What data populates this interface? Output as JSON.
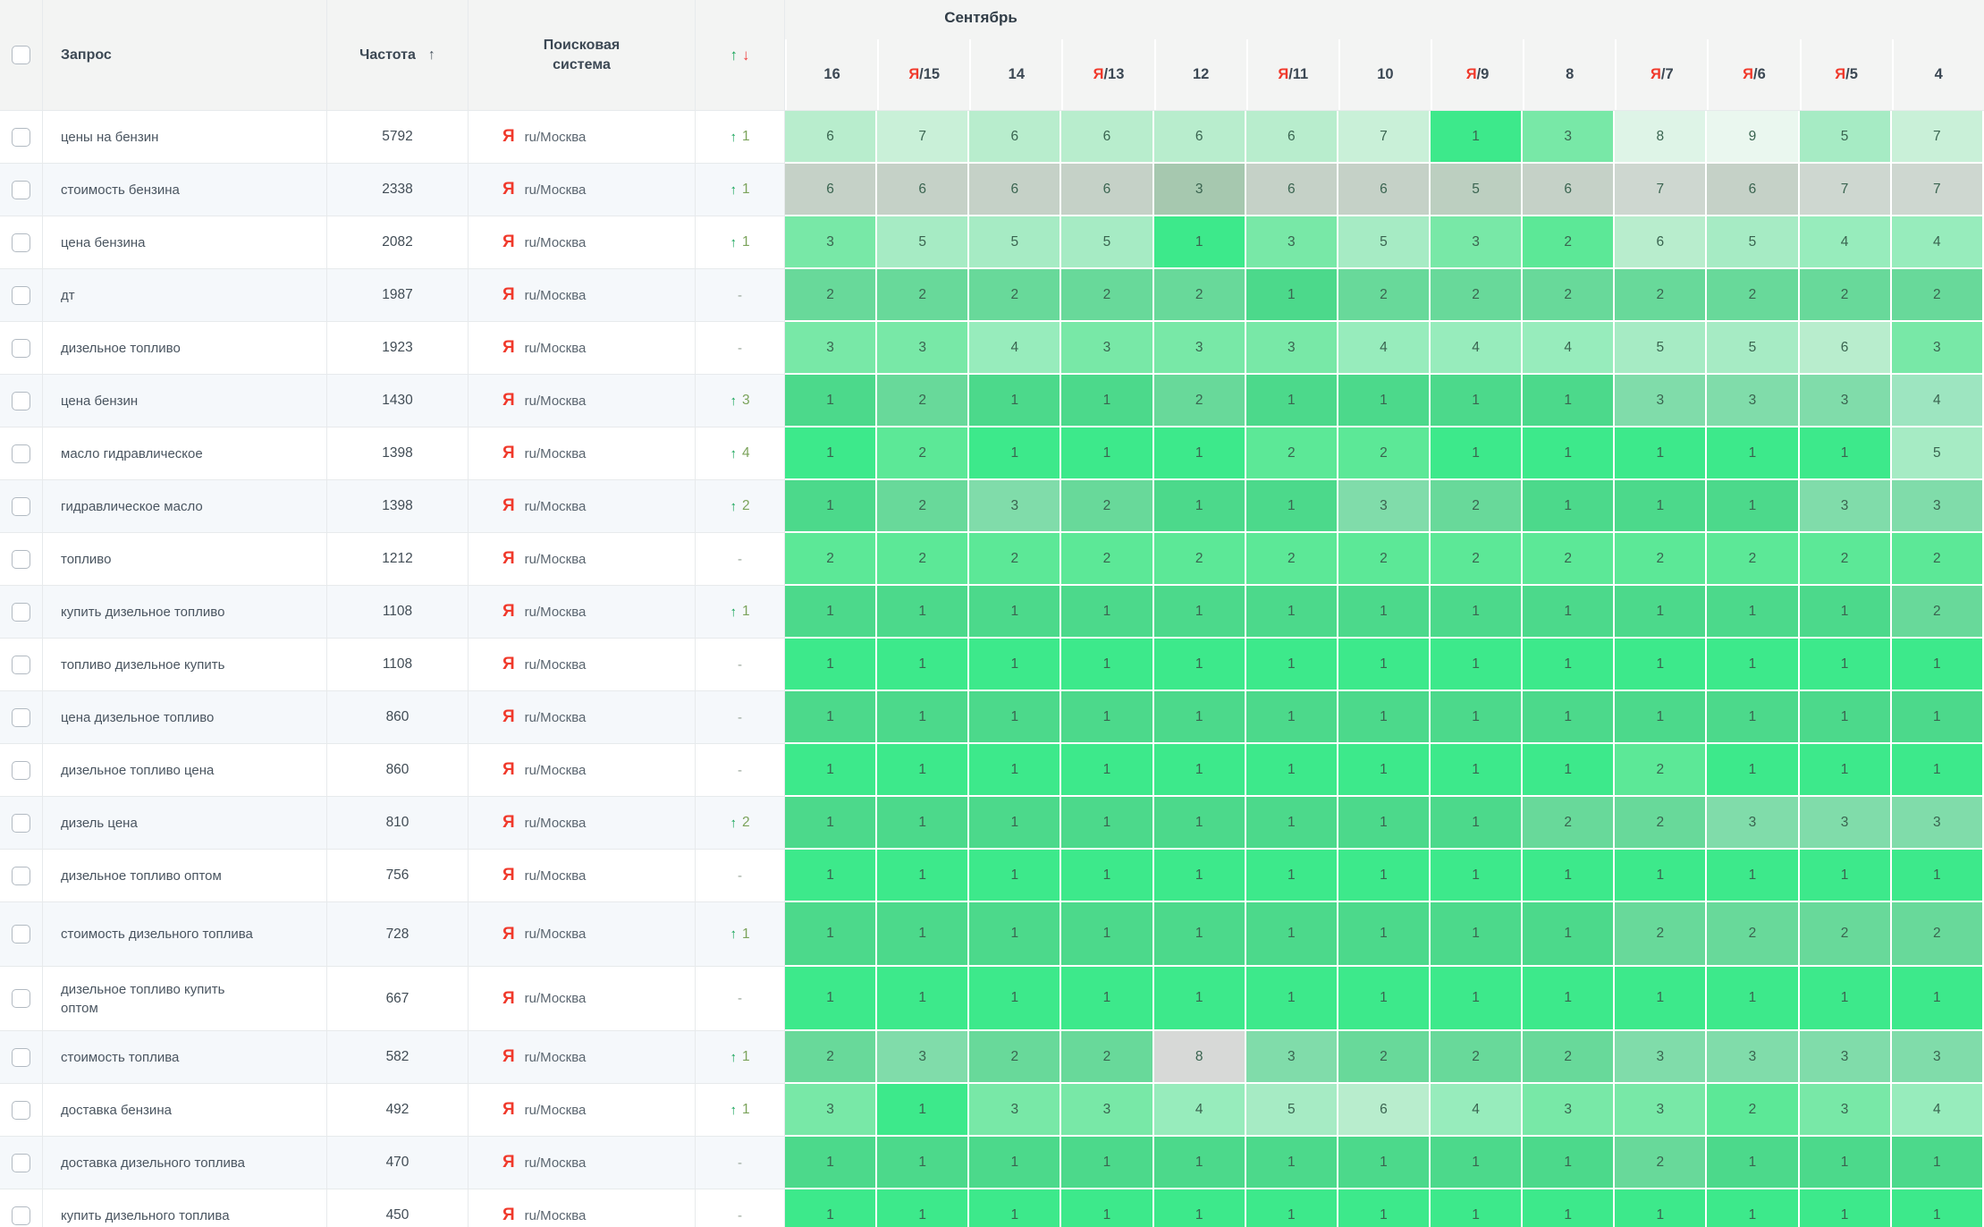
{
  "header": {
    "query_label": "Запрос",
    "frequency_label": "Частота",
    "engine_label_line1": "Поисковая",
    "engine_label_line2": "система",
    "month_label": "Сентябрь",
    "sort_asc_icon": "↑",
    "change_up_icon": "↑",
    "change_down_icon": "↓",
    "dates": [
      {
        "ya": false,
        "label": "16"
      },
      {
        "ya": true,
        "label": "15"
      },
      {
        "ya": false,
        "label": "14"
      },
      {
        "ya": true,
        "label": "13"
      },
      {
        "ya": false,
        "label": "12"
      },
      {
        "ya": true,
        "label": "11"
      },
      {
        "ya": false,
        "label": "10"
      },
      {
        "ya": true,
        "label": "9"
      },
      {
        "ya": false,
        "label": "8"
      },
      {
        "ya": true,
        "label": "7"
      },
      {
        "ya": true,
        "label": "6"
      },
      {
        "ya": true,
        "label": "5"
      },
      {
        "ya": false,
        "label": "4"
      }
    ]
  },
  "engine": {
    "icon_letter": "Я",
    "label": "ru/Москва"
  },
  "change_glyphs": {
    "up": "↑",
    "dash": "-"
  },
  "colors": {
    "yandex_red": "#f0392b",
    "header_text": "#3c4854",
    "header_bg": "#f3f4f3",
    "query_text": "#4a5560",
    "cell_text": "#3a6450",
    "up_green": "#13a356",
    "down_red": "#ef4040",
    "change_value": "#7ba35b",
    "dash": "#98a59a",
    "alt_row_bg": "#f5f8fb",
    "grid_line": "#e7eaec",
    "neutral_cell": "#d7d9d7"
  },
  "palettes": {
    "normal": {
      "1": "#3de98b",
      "2": "#5ce897",
      "3": "#78e8a7",
      "4": "#97ecbc",
      "5": "#a6ebc4",
      "6": "#b8edcd",
      "7": "#c9f0d8",
      "8": "#def4e7",
      "9": "#eaf7ef"
    },
    "muted": {
      "1": "#4cd98b",
      "2": "#68d99a",
      "3": "#80dcaa",
      "4": "#9de5c0",
      "5": "#aae6c5",
      "6": "#bbead0",
      "7": "#cceedb",
      "8": "#dff2e8",
      "9": "#ebf5f0"
    },
    "gray": {
      "1": "#98c4a4",
      "2": "#9fc6a9",
      "3": "#a6c8af",
      "4": "#b1cbb8",
      "5": "#bccfc0",
      "6": "#c5d1c7",
      "7": "#ced7d0",
      "8": "#d7dcd8",
      "9": "#e0e4e1"
    }
  },
  "rows": [
    {
      "query": "цены на бензин",
      "frequency": "5792",
      "change": {
        "dir": "up",
        "value": "1"
      },
      "cells": [
        6,
        7,
        6,
        6,
        6,
        6,
        7,
        1,
        3,
        8,
        9,
        5,
        7
      ]
    },
    {
      "query": "стоимость бензина",
      "frequency": "2338",
      "change": {
        "dir": "up",
        "value": "1"
      },
      "gray": true,
      "cells": [
        6,
        6,
        6,
        6,
        3,
        6,
        6,
        5,
        6,
        7,
        6,
        7,
        7
      ]
    },
    {
      "query": "цена бензина",
      "frequency": "2082",
      "change": {
        "dir": "up",
        "value": "1"
      },
      "cells": [
        3,
        5,
        5,
        5,
        1,
        3,
        5,
        3,
        2,
        6,
        5,
        4,
        4
      ]
    },
    {
      "query": "дт",
      "frequency": "1987",
      "change": {
        "dir": "dash"
      },
      "cells": [
        2,
        2,
        2,
        2,
        2,
        1,
        2,
        2,
        2,
        2,
        2,
        2,
        2
      ]
    },
    {
      "query": "дизельное топливо",
      "frequency": "1923",
      "change": {
        "dir": "dash"
      },
      "cells": [
        3,
        3,
        4,
        3,
        3,
        3,
        4,
        4,
        4,
        5,
        5,
        6,
        3
      ]
    },
    {
      "query": "цена бензин",
      "frequency": "1430",
      "change": {
        "dir": "up",
        "value": "3"
      },
      "cells": [
        1,
        2,
        1,
        1,
        2,
        1,
        1,
        1,
        1,
        3,
        3,
        3,
        4
      ]
    },
    {
      "query": "масло гидравлическое",
      "frequency": "1398",
      "change": {
        "dir": "up",
        "value": "4"
      },
      "cells": [
        1,
        2,
        1,
        1,
        1,
        2,
        2,
        1,
        1,
        1,
        1,
        1,
        5
      ]
    },
    {
      "query": "гидравлическое масло",
      "frequency": "1398",
      "change": {
        "dir": "up",
        "value": "2"
      },
      "cells": [
        1,
        2,
        3,
        2,
        1,
        1,
        3,
        2,
        1,
        1,
        1,
        3,
        3
      ]
    },
    {
      "query": "топливо",
      "frequency": "1212",
      "change": {
        "dir": "dash"
      },
      "cells": [
        2,
        2,
        2,
        2,
        2,
        2,
        2,
        2,
        2,
        2,
        2,
        2,
        2
      ]
    },
    {
      "query": "купить дизельное топливо",
      "frequency": "1108",
      "change": {
        "dir": "up",
        "value": "1"
      },
      "cells": [
        1,
        1,
        1,
        1,
        1,
        1,
        1,
        1,
        1,
        1,
        1,
        1,
        2
      ]
    },
    {
      "query": "топливо дизельное купить",
      "frequency": "1108",
      "change": {
        "dir": "dash"
      },
      "cells": [
        1,
        1,
        1,
        1,
        1,
        1,
        1,
        1,
        1,
        1,
        1,
        1,
        1
      ]
    },
    {
      "query": "цена дизельное топливо",
      "frequency": "860",
      "change": {
        "dir": "dash"
      },
      "cells": [
        1,
        1,
        1,
        1,
        1,
        1,
        1,
        1,
        1,
        1,
        1,
        1,
        1
      ]
    },
    {
      "query": "дизельное топливо цена",
      "frequency": "860",
      "change": {
        "dir": "dash"
      },
      "cells": [
        1,
        1,
        1,
        1,
        1,
        1,
        1,
        1,
        1,
        2,
        1,
        1,
        1
      ]
    },
    {
      "query": "дизель цена",
      "frequency": "810",
      "change": {
        "dir": "up",
        "value": "2"
      },
      "cells": [
        1,
        1,
        1,
        1,
        1,
        1,
        1,
        1,
        2,
        2,
        3,
        3,
        3
      ]
    },
    {
      "query": "дизельное топливо оптом",
      "frequency": "756",
      "change": {
        "dir": "dash"
      },
      "cells": [
        1,
        1,
        1,
        1,
        1,
        1,
        1,
        1,
        1,
        1,
        1,
        1,
        1
      ]
    },
    {
      "query": "стоимость дизельного топлива",
      "frequency": "728",
      "change": {
        "dir": "up",
        "value": "1"
      },
      "cells": [
        1,
        1,
        1,
        1,
        1,
        1,
        1,
        1,
        1,
        2,
        2,
        2,
        2
      ]
    },
    {
      "query": "дизельное топливо купить оптом",
      "frequency": "667",
      "change": {
        "dir": "dash"
      },
      "cells": [
        1,
        1,
        1,
        1,
        1,
        1,
        1,
        1,
        1,
        1,
        1,
        1,
        1
      ]
    },
    {
      "query": "стоимость топлива",
      "frequency": "582",
      "change": {
        "dir": "up",
        "value": "1"
      },
      "cells": [
        2,
        3,
        2,
        2,
        8,
        3,
        2,
        2,
        2,
        3,
        3,
        3,
        3
      ],
      "overrides": {
        "4": "neutral"
      }
    },
    {
      "query": "доставка бензина",
      "frequency": "492",
      "change": {
        "dir": "up",
        "value": "1"
      },
      "cells": [
        3,
        1,
        3,
        3,
        4,
        5,
        6,
        4,
        3,
        3,
        2,
        3,
        4
      ]
    },
    {
      "query": "доставка дизельного топлива",
      "frequency": "470",
      "change": {
        "dir": "dash"
      },
      "cells": [
        1,
        1,
        1,
        1,
        1,
        1,
        1,
        1,
        1,
        2,
        1,
        1,
        1
      ]
    },
    {
      "query": "купить дизельного топлива",
      "frequency": "450",
      "change": {
        "dir": "dash"
      },
      "clipped": true,
      "cells": [
        1,
        1,
        1,
        1,
        1,
        1,
        1,
        1,
        1,
        1,
        1,
        1,
        1
      ]
    }
  ]
}
